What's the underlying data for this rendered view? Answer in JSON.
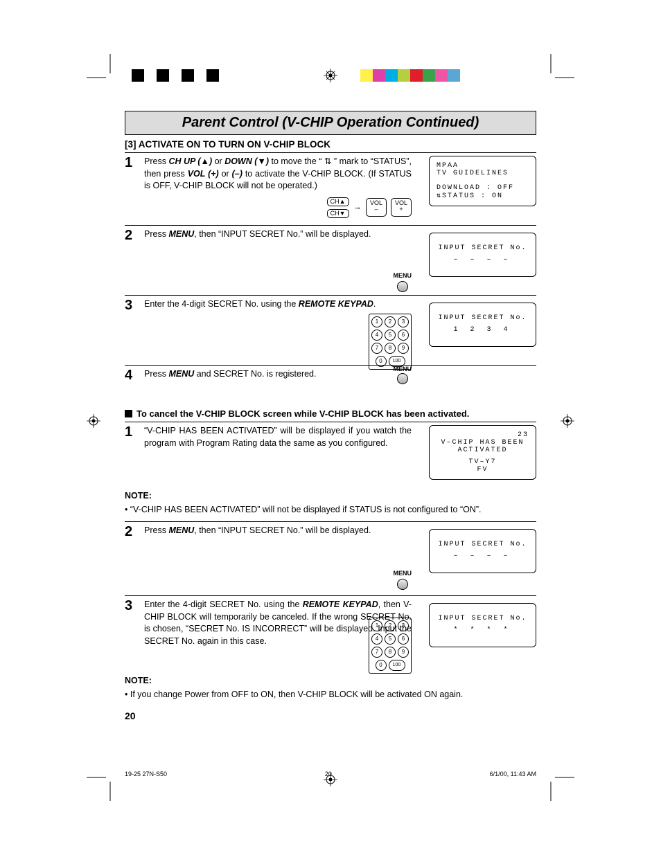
{
  "colorbar_left": [
    "#000000",
    "#ffffff",
    "#000000",
    "#ffffff",
    "#000000",
    "#ffffff",
    "#000000",
    "#ffffff"
  ],
  "colorbar_right": [
    "#fff04a",
    "#e03ea8",
    "#00aee6",
    "#b6cf3f",
    "#e21e2a",
    "#3aa24a",
    "#ef55a6",
    "#5aa7d6"
  ],
  "title": "Parent Control (V-CHIP Operation Continued)",
  "section_a": "[3] ACTIVATE ON TO TURN ON V-CHIP BLOCK",
  "steps_a": {
    "s1": {
      "num": "1",
      "pre": "Press ",
      "chup": "CH UP (▲)",
      "mid1": " or ",
      "down": "DOWN (▼)",
      "mid2": " to move the “ ⇅ ” mark to “STATUS”, then press ",
      "vol_plus": "VOL (+)",
      "mid3": " or ",
      "vol_minus": "(–)",
      "tail": " to activate the V-CHIP BLOCK. (If STATUS is OFF, V-CHIP BLOCK will not be operated.)"
    },
    "s2": {
      "num": "2",
      "pre": "Press ",
      "menu": "MENU",
      "tail": ", then “INPUT SECRET No.” will be displayed."
    },
    "s3": {
      "num": "3",
      "pre": "Enter the 4-digit SECRET No. using the ",
      "keypad": "REMOTE KEYPAD",
      "tail": "."
    },
    "s4": {
      "num": "4",
      "pre": "Press ",
      "menu": "MENU",
      "tail": " and SECRET No. is registered."
    }
  },
  "screens_a": {
    "b1_l1": "MPAA",
    "b1_l2": "TV GUIDELINES",
    "b1_l3": "DOWNLOAD : OFF",
    "b1_l4": "⇅STATUS   : ON",
    "b2_l1": "INPUT SECRET No.",
    "b2_l2": "– – – –",
    "b3_l1": "INPUT SECRET No.",
    "b3_l2": "1 2 3 4"
  },
  "controls": {
    "chup": "CH▲",
    "chdn": "CH▼",
    "vol_minus": "VOL –",
    "vol_plus": "VOL +",
    "arrow": "→",
    "menu": "MENU"
  },
  "keypad_digits": [
    "1",
    "2",
    "3",
    "4",
    "5",
    "6",
    "7",
    "8",
    "9",
    "0",
    "100"
  ],
  "cancel_heading": "To cancel the V-CHIP BLOCK screen while V-CHIP BLOCK has been activated.",
  "steps_b": {
    "s1": {
      "num": "1",
      "text": "“V-CHIP HAS BEEN ACTIVATED” will be displayed if you watch the program with Program Rating data the same as you configured."
    },
    "s2": {
      "num": "2",
      "pre": "Press ",
      "menu": "MENU",
      "tail": ", then “INPUT SECRET No.” will be displayed."
    },
    "s3": {
      "num": "3",
      "pre": "Enter the 4-digit SECRET No. using the ",
      "keypad": "REMOTE KEYPAD",
      "tail": ", then V-CHIP BLOCK will temporarily be canceled. If the wrong SECRET No. is chosen, “SECRET No. IS INCORRECT” will be displayed. Input the SECRET No. again in this case."
    }
  },
  "screens_b": {
    "b1_l1": "23",
    "b1_l2": "V–CHIP HAS BEEN",
    "b1_l3": "ACTIVATED",
    "b1_l4": "TV–Y7",
    "b1_l5": "FV",
    "b2_l1": "INPUT SECRET No.",
    "b2_l2": "– – – –",
    "b3_l1": "INPUT SECRET No.",
    "b3_l2": "* * * *"
  },
  "note_label": "NOTE:",
  "note_a": "• “V-CHIP HAS BEEN ACTIVATED” will not be displayed if STATUS is not configured to “ON”.",
  "note_b": "• If you change Power from OFF to ON, then V-CHIP BLOCK will be activated ON again.",
  "page_number": "20",
  "footer_left": "19-25 27N-S50",
  "footer_mid": "20",
  "footer_right": "6/1/00, 11:43 AM"
}
